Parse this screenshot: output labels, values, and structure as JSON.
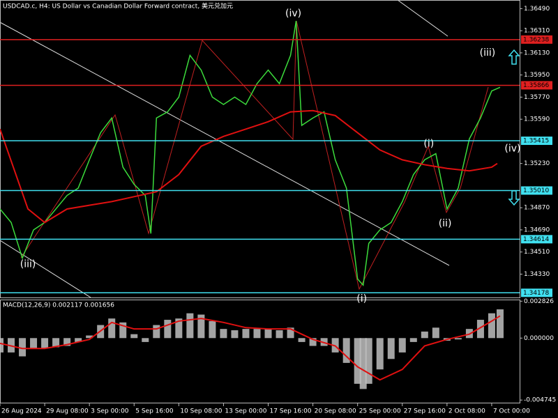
{
  "chart_data": [
    {
      "type": "line",
      "title": "USDCAD.c, H4:  US Dollar vs Canadian Dollar Forward contract, 美元兑加元",
      "xlim": [
        0,
        186
      ],
      "ylim": [
        1.3414,
        1.3656
      ],
      "xticks": [
        {
          "value": 0,
          "label": "26 Aug 2024"
        },
        {
          "value": 16,
          "label": "29 Aug 08:00"
        },
        {
          "value": 32,
          "label": "3 Sep 00:00"
        },
        {
          "value": 48,
          "label": "5 Sep 16:00"
        },
        {
          "value": 64,
          "label": "10 Sep 08:00"
        },
        {
          "value": 80,
          "label": "13 Sep 00:00"
        },
        {
          "value": 96,
          "label": "17 Sep 16:00"
        },
        {
          "value": 112,
          "label": "20 Sep 08:00"
        },
        {
          "value": 128,
          "label": "25 Sep 00:00"
        },
        {
          "value": 144,
          "label": "27 Sep 16:00"
        },
        {
          "value": 160,
          "label": "2 Oct 08:00"
        },
        {
          "value": 176,
          "label": "7 Oct 00:00"
        }
      ],
      "yticks": [
        {
          "value": 1.3649,
          "label": "1.36490"
        },
        {
          "value": 1.3631,
          "label": "1.36310"
        },
        {
          "value": 1.3613,
          "label": "1.36130"
        },
        {
          "value": 1.3595,
          "label": "1.35950"
        },
        {
          "value": 1.3577,
          "label": "1.35770"
        },
        {
          "value": 1.3559,
          "label": "1.35590"
        },
        {
          "value": 1.3523,
          "label": "1.35230"
        },
        {
          "value": 1.3487,
          "label": "1.34870"
        },
        {
          "value": 1.3469,
          "label": "1.34690"
        },
        {
          "value": 1.3451,
          "label": "1.34510"
        },
        {
          "value": 1.3433,
          "label": "1.34330"
        }
      ],
      "levels": [
        {
          "value": 1.36238,
          "label": "1.36238",
          "color": "#e02020"
        },
        {
          "value": 1.35866,
          "label": "1.35866",
          "color": "#e02020"
        },
        {
          "value": 1.35415,
          "label": "1.35415",
          "color": "#40e0f0"
        },
        {
          "value": 1.3501,
          "label": "1.35010",
          "color": "#40e0f0"
        },
        {
          "value": 1.34614,
          "label": "1.34614",
          "color": "#40e0f0"
        },
        {
          "value": 1.34178,
          "label": "1.34178",
          "color": "#40e0f0"
        }
      ],
      "series": [
        {
          "name": "USDCAD.c",
          "color": "#3cdc3c",
          "x": [
            0,
            4,
            8,
            12,
            16,
            20,
            24,
            28,
            32,
            36,
            40,
            44,
            48,
            52,
            54,
            56,
            60,
            64,
            68,
            72,
            76,
            80,
            84,
            88,
            92,
            96,
            100,
            104,
            106,
            108,
            112,
            116,
            120,
            124,
            128,
            130,
            132,
            136,
            140,
            144,
            148,
            152,
            156,
            160,
            164,
            168,
            172,
            176,
            179
          ],
          "values": [
            1.3486,
            1.3475,
            1.3446,
            1.3469,
            1.3475,
            1.3486,
            1.3497,
            1.3503,
            1.3526,
            1.3548,
            1.356,
            1.352,
            1.3506,
            1.3497,
            1.3466,
            1.356,
            1.3565,
            1.3577,
            1.3611,
            1.3599,
            1.3577,
            1.3571,
            1.3577,
            1.3571,
            1.3588,
            1.3599,
            1.3588,
            1.3611,
            1.3639,
            1.3554,
            1.356,
            1.3565,
            1.3526,
            1.3503,
            1.3429,
            1.3424,
            1.3458,
            1.3469,
            1.3475,
            1.3492,
            1.3514,
            1.3526,
            1.3531,
            1.3486,
            1.3503,
            1.3543,
            1.356,
            1.3582,
            1.3585
          ]
        },
        {
          "name": "MA",
          "color": "#e01010",
          "x": [
            0,
            10,
            16,
            24,
            32,
            40,
            48,
            56,
            64,
            72,
            80,
            88,
            96,
            104,
            112,
            120,
            128,
            136,
            144,
            152,
            160,
            168,
            176,
            178
          ],
          "values": [
            1.3551,
            1.3486,
            1.3475,
            1.3486,
            1.3489,
            1.3492,
            1.3496,
            1.35,
            1.3514,
            1.3537,
            1.3545,
            1.3551,
            1.3557,
            1.3565,
            1.3566,
            1.3562,
            1.3548,
            1.3534,
            1.3526,
            1.3522,
            1.3519,
            1.3517,
            1.352,
            1.3523
          ]
        }
      ],
      "annotations": [
        {
          "text": "(iii)",
          "x": 10,
          "y": 1.3441
        },
        {
          "text": "(iv)",
          "x": 105,
          "y": 1.3645
        },
        {
          "text": "(iii)",
          "x": 174.5,
          "y": 1.3613
        },
        {
          "text": "(iv)",
          "x": 183.5,
          "y": 1.3535
        },
        {
          "text": "(i)",
          "x": 153.5,
          "y": 1.3539
        },
        {
          "text": "(ii)",
          "x": 159.3,
          "y": 1.3474
        },
        {
          "text": "(i)",
          "x": 129.5,
          "y": 1.3413
        }
      ]
    },
    {
      "type": "bar",
      "title": "MACD(12,26,9) 0.002117 0.001656",
      "ylim": [
        -0.00516,
        0.00295
      ],
      "yticks": [
        {
          "value": 0.002826,
          "label": "0.002826"
        },
        {
          "value": 0,
          "label": "0.000000"
        },
        {
          "value": -0.004745,
          "label": "-0.004745"
        }
      ],
      "series": [
        {
          "name": "MACD",
          "color": "#c0c0c0",
          "x": [
            0,
            4,
            8,
            12,
            16,
            20,
            24,
            28,
            32,
            36,
            40,
            44,
            48,
            52,
            56,
            60,
            64,
            68,
            72,
            76,
            80,
            84,
            88,
            92,
            96,
            100,
            104,
            108,
            112,
            116,
            120,
            124,
            128,
            130,
            132,
            136,
            140,
            144,
            148,
            152,
            156,
            160,
            164,
            168,
            172,
            176,
            179
          ],
          "values": [
            -0.0011,
            -0.0011,
            -0.0014,
            -0.0008,
            -0.0008,
            -0.0007,
            -0.0006,
            -0.0003,
            0.0002,
            0.001,
            0.0015,
            0.0012,
            0.0003,
            -0.0003,
            0.001,
            0.0014,
            0.0015,
            0.0019,
            0.0018,
            0.0013,
            0.0007,
            0.0006,
            0.0007,
            0.0007,
            0.0007,
            0.0006,
            0.0008,
            -0.0003,
            -0.0006,
            -0.0006,
            -0.0011,
            -0.0019,
            -0.0035,
            -0.0039,
            -0.0035,
            -0.0024,
            -0.0016,
            -0.0011,
            -0.0003,
            0.0005,
            0.0008,
            -0.0002,
            -0.0001,
            0.0007,
            0.0014,
            0.0019,
            0.0022
          ]
        },
        {
          "name": "Signal",
          "color": "#e01010",
          "x": [
            0,
            8,
            16,
            24,
            32,
            40,
            48,
            56,
            64,
            72,
            80,
            88,
            96,
            104,
            112,
            120,
            128,
            136,
            144,
            152,
            160,
            168,
            176,
            179
          ],
          "values": [
            -0.0004,
            -0.0008,
            -0.0008,
            -0.0005,
            -0.0001,
            0.0012,
            0.0007,
            0.0007,
            0.0013,
            0.0015,
            0.0012,
            0.0008,
            0.0007,
            0.0007,
            -0.0001,
            -0.0006,
            -0.0022,
            -0.0032,
            -0.0024,
            -0.0006,
            -0.0001,
            0.0003,
            0.0013,
            0.0017
          ]
        }
      ]
    }
  ]
}
